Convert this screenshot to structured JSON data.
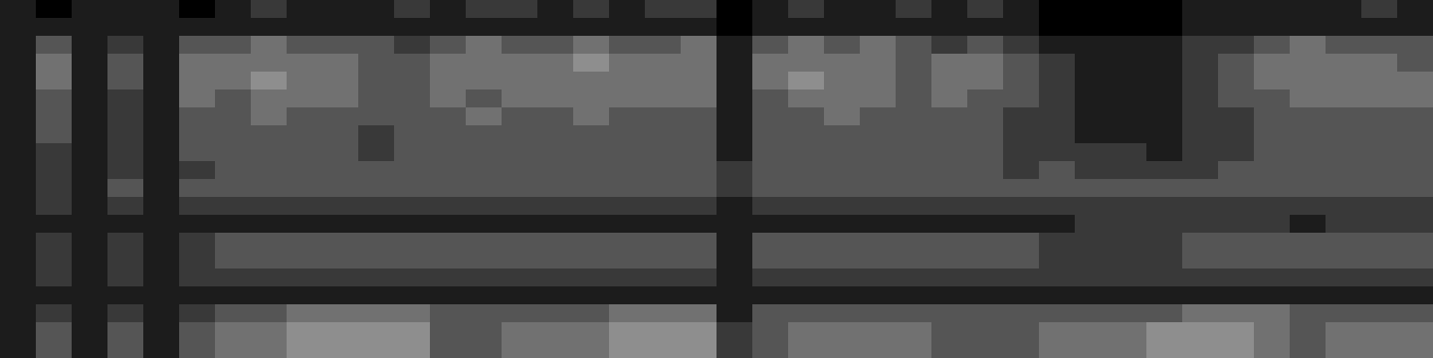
{
  "chart_data": {
    "type": "heatmap",
    "tick_labels": false,
    "zlim": [
      0,
      9
    ],
    "cells": [
      [
        1,
        0,
        1,
        1,
        1,
        0,
        1,
        2,
        1,
        1,
        1,
        2,
        1,
        2,
        2,
        1,
        2,
        1,
        2,
        2,
        0,
        1,
        2,
        1,
        1,
        2,
        1,
        2,
        1,
        0,
        0,
        0,
        0,
        1,
        1,
        1,
        1,
        1,
        2,
        1
      ],
      [
        1,
        1,
        1,
        1,
        1,
        1,
        1,
        1,
        1,
        1,
        1,
        1,
        1,
        1,
        1,
        1,
        1,
        1,
        1,
        1,
        0,
        1,
        1,
        1,
        1,
        1,
        1,
        1,
        1,
        0,
        0,
        0,
        0,
        1,
        1,
        1,
        1,
        1,
        1,
        1
      ],
      [
        1,
        3,
        1,
        2,
        1,
        3,
        3,
        4,
        3,
        3,
        3,
        2,
        3,
        4,
        3,
        3,
        4,
        3,
        3,
        4,
        1,
        3,
        4,
        3,
        4,
        3,
        2,
        3,
        2,
        1,
        1,
        1,
        1,
        2,
        2,
        3,
        4,
        3,
        3,
        3
      ],
      [
        1,
        4,
        1,
        3,
        1,
        4,
        4,
        4,
        4,
        4,
        3,
        3,
        4,
        4,
        4,
        4,
        5,
        4,
        4,
        4,
        1,
        4,
        4,
        4,
        4,
        3,
        4,
        4,
        3,
        2,
        1,
        1,
        1,
        2,
        3,
        4,
        4,
        4,
        4,
        3
      ],
      [
        1,
        4,
        1,
        3,
        1,
        4,
        4,
        5,
        4,
        4,
        3,
        3,
        4,
        4,
        4,
        4,
        4,
        4,
        4,
        4,
        1,
        4,
        5,
        4,
        4,
        3,
        4,
        4,
        3,
        2,
        1,
        1,
        1,
        2,
        3,
        4,
        4,
        4,
        4,
        4
      ],
      [
        1,
        3,
        1,
        2,
        1,
        4,
        3,
        4,
        4,
        4,
        3,
        3,
        4,
        3,
        4,
        4,
        4,
        4,
        4,
        4,
        1,
        3,
        4,
        4,
        4,
        3,
        4,
        3,
        3,
        2,
        1,
        1,
        1,
        2,
        3,
        3,
        4,
        4,
        4,
        4
      ],
      [
        1,
        3,
        1,
        2,
        1,
        3,
        3,
        4,
        3,
        3,
        3,
        3,
        3,
        4,
        3,
        3,
        4,
        3,
        3,
        3,
        1,
        3,
        3,
        4,
        3,
        3,
        3,
        3,
        2,
        2,
        1,
        1,
        1,
        2,
        2,
        3,
        3,
        3,
        3,
        3
      ],
      [
        1,
        3,
        1,
        2,
        1,
        3,
        3,
        3,
        3,
        3,
        2,
        3,
        3,
        3,
        3,
        3,
        3,
        3,
        3,
        3,
        1,
        3,
        3,
        3,
        3,
        3,
        3,
        3,
        2,
        2,
        1,
        1,
        1,
        2,
        2,
        3,
        3,
        3,
        3,
        3
      ],
      [
        1,
        2,
        1,
        2,
        1,
        3,
        3,
        3,
        3,
        3,
        2,
        3,
        3,
        3,
        3,
        3,
        3,
        3,
        3,
        3,
        1,
        3,
        3,
        3,
        3,
        3,
        3,
        3,
        2,
        2,
        2,
        2,
        1,
        2,
        2,
        3,
        3,
        3,
        3,
        3
      ],
      [
        1,
        2,
        1,
        2,
        1,
        2,
        3,
        3,
        3,
        3,
        3,
        3,
        3,
        3,
        3,
        3,
        3,
        3,
        3,
        3,
        2,
        3,
        3,
        3,
        3,
        3,
        3,
        3,
        2,
        3,
        2,
        2,
        2,
        2,
        3,
        3,
        3,
        3,
        3,
        3
      ],
      [
        1,
        2,
        1,
        3,
        1,
        3,
        3,
        3,
        3,
        3,
        3,
        3,
        3,
        3,
        3,
        3,
        3,
        3,
        3,
        3,
        2,
        3,
        3,
        3,
        3,
        3,
        3,
        3,
        3,
        3,
        3,
        3,
        3,
        3,
        3,
        3,
        3,
        3,
        3,
        3
      ],
      [
        1,
        2,
        1,
        2,
        1,
        2,
        2,
        2,
        2,
        2,
        2,
        2,
        2,
        2,
        2,
        2,
        2,
        2,
        2,
        2,
        1,
        2,
        2,
        2,
        2,
        2,
        2,
        2,
        2,
        2,
        2,
        2,
        2,
        2,
        2,
        2,
        2,
        2,
        2,
        2
      ],
      [
        1,
        1,
        1,
        1,
        1,
        1,
        1,
        1,
        1,
        1,
        1,
        1,
        1,
        1,
        1,
        1,
        1,
        1,
        1,
        1,
        1,
        1,
        1,
        1,
        1,
        1,
        1,
        1,
        1,
        1,
        2,
        2,
        2,
        2,
        2,
        2,
        1,
        2,
        2,
        2
      ],
      [
        1,
        2,
        1,
        2,
        1,
        2,
        3,
        3,
        3,
        3,
        3,
        3,
        3,
        3,
        3,
        3,
        3,
        3,
        3,
        3,
        1,
        3,
        3,
        3,
        3,
        3,
        3,
        3,
        3,
        2,
        2,
        2,
        2,
        3,
        3,
        3,
        3,
        3,
        3,
        3
      ],
      [
        1,
        2,
        1,
        2,
        1,
        2,
        3,
        3,
        3,
        3,
        3,
        3,
        3,
        3,
        3,
        3,
        3,
        3,
        3,
        3,
        1,
        3,
        3,
        3,
        3,
        3,
        3,
        3,
        3,
        2,
        2,
        2,
        2,
        3,
        3,
        3,
        3,
        3,
        3,
        3
      ],
      [
        1,
        2,
        1,
        2,
        1,
        2,
        2,
        2,
        2,
        2,
        2,
        2,
        2,
        2,
        2,
        2,
        2,
        2,
        2,
        2,
        1,
        2,
        2,
        2,
        2,
        2,
        2,
        2,
        2,
        2,
        2,
        2,
        2,
        2,
        2,
        2,
        2,
        2,
        2,
        2
      ],
      [
        1,
        1,
        1,
        1,
        1,
        1,
        1,
        1,
        1,
        1,
        1,
        1,
        1,
        1,
        1,
        1,
        1,
        1,
        1,
        1,
        1,
        1,
        1,
        1,
        1,
        1,
        1,
        1,
        1,
        1,
        1,
        1,
        1,
        1,
        1,
        1,
        1,
        1,
        1,
        1
      ],
      [
        1,
        2,
        1,
        2,
        1,
        2,
        3,
        3,
        4,
        4,
        4,
        4,
        3,
        3,
        3,
        3,
        3,
        4,
        4,
        4,
        1,
        3,
        3,
        3,
        3,
        3,
        3,
        3,
        3,
        3,
        3,
        3,
        3,
        4,
        4,
        4,
        3,
        3,
        3,
        3
      ],
      [
        1,
        3,
        1,
        3,
        1,
        3,
        4,
        4,
        5,
        5,
        5,
        5,
        3,
        3,
        4,
        4,
        4,
        5,
        5,
        5,
        2,
        3,
        4,
        4,
        4,
        4,
        3,
        3,
        3,
        4,
        4,
        4,
        5,
        5,
        5,
        4,
        3,
        4,
        4,
        4
      ],
      [
        1,
        3,
        1,
        3,
        1,
        3,
        4,
        4,
        5,
        5,
        5,
        5,
        3,
        3,
        4,
        4,
        4,
        5,
        5,
        5,
        2,
        3,
        4,
        4,
        4,
        4,
        3,
        3,
        3,
        4,
        4,
        4,
        5,
        5,
        5,
        4,
        3,
        4,
        4,
        4
      ]
    ]
  }
}
